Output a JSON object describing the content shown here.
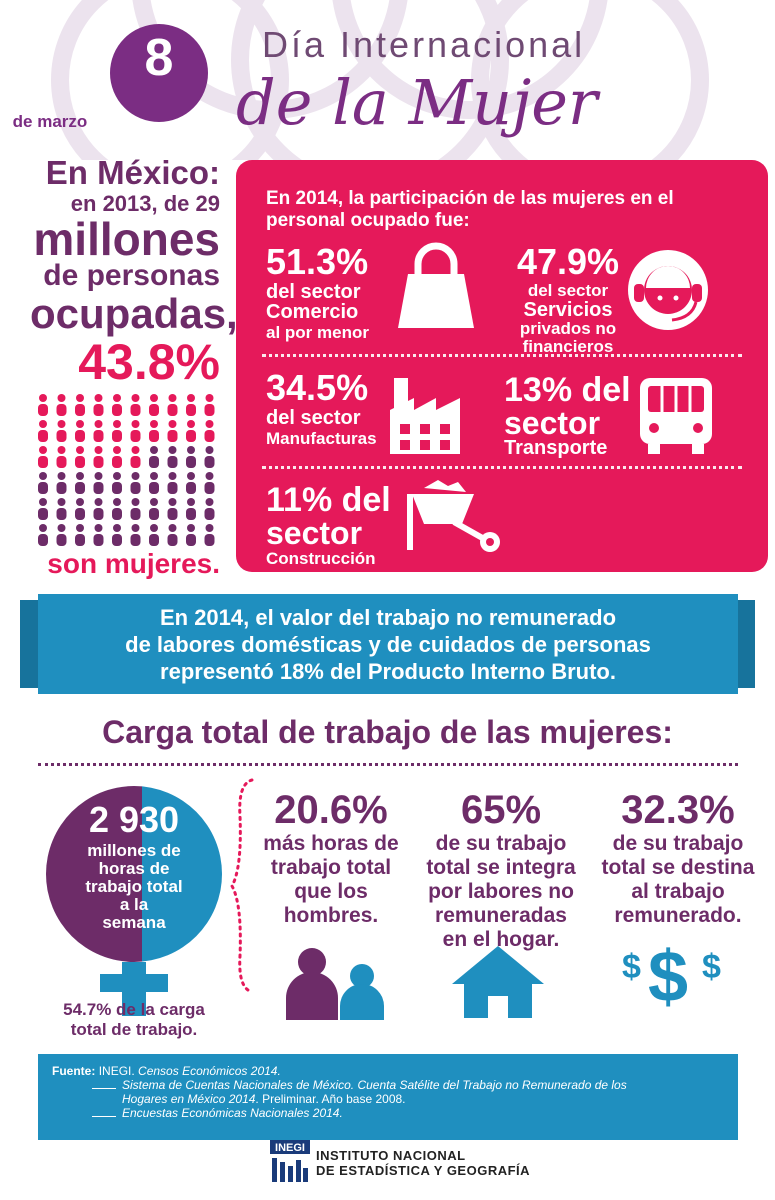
{
  "header": {
    "date_day": "8",
    "date_month": "de marzo",
    "title_line1": "Día Internacional",
    "title_line2": "de la Mujer"
  },
  "left": {
    "line1": "En México:",
    "line2": "en 2013, de 29",
    "line3": "millones",
    "line4": "de personas",
    "line5": "ocupadas,",
    "line6": "43.8%",
    "footer": "son mujeres.",
    "people_share": 0.438
  },
  "sectors": {
    "intro": "En 2014, la participación de las mujeres en el personal ocupado fue:",
    "comercio": {
      "pct": "51.3%",
      "l1": "del sector",
      "l2": "Comercio",
      "l3": "al por menor",
      "icon": "shopping-bag-icon"
    },
    "servicios": {
      "pct": "47.9%",
      "l1": "del sector",
      "l2": "Servicios",
      "l3": "privados no",
      "l4": "financieros",
      "icon": "headset-operator-icon"
    },
    "manufacturas": {
      "pct": "34.5%",
      "l1": "del sector",
      "l2": "Manufacturas",
      "icon": "factory-icon"
    },
    "transporte": {
      "pct": "13% del",
      "l1": "sector",
      "l2": "Transporte",
      "icon": "bus-icon"
    },
    "construccion": {
      "pct": "11% del",
      "l1": "sector",
      "l2": "Construcción",
      "icon": "wheelbarrow-icon"
    }
  },
  "banner": {
    "line1": "En 2014, el valor del trabajo no remunerado",
    "line2": "de labores domésticas y de cuidados de personas",
    "line3": "representó 18% del Producto Interno Bruto."
  },
  "carga": {
    "title": "Carga total de trabajo de las mujeres:",
    "hours_num": "2 930",
    "hours_label_1": "millones de",
    "hours_label_2": "horas de",
    "hours_label_3": "trabajo total",
    "hours_label_4": "a la",
    "hours_label_5": "semana",
    "share_1": "54.7% de la carga",
    "share_2": "total de trabajo.",
    "share_value": 0.547,
    "col1": {
      "pct": "20.6%",
      "l1": "más horas de",
      "l2": "trabajo total",
      "l3": "que los",
      "l4": "hombres.",
      "icon": "people-icon"
    },
    "col2": {
      "pct": "65%",
      "l1": "de su trabajo",
      "l2": "total se integra",
      "l3": "por labores no",
      "l4": "remuneradas",
      "l5": "en el hogar.",
      "icon": "house-icon"
    },
    "col3": {
      "pct": "32.3%",
      "l1": "de su trabajo",
      "l2": "total se destina",
      "l3": "al trabajo",
      "l4": "remunerado.",
      "icon": "dollar-signs-icon"
    }
  },
  "sources": {
    "label": "Fuente:",
    "org": "INEGI.",
    "s1": "Censos Económicos 2014.",
    "s2a": "Sistema de Cuentas Nacionales de México. Cuenta Satélite del Trabajo no Remunerado de los",
    "s2b": "Hogares en México 2014",
    "s2c": ". Preliminar. Año base 2008.",
    "s3": "Encuestas Económicas Nacionales 2014."
  },
  "logo": {
    "mark": "INEGI",
    "name_1": "INSTITUTO NACIONAL",
    "name_2": "DE ESTADÍSTICA Y GEOGRAFÍA"
  },
  "colors": {
    "purple": "#6d2c68",
    "pink": "#e5195a",
    "blue": "#1f8fbf"
  }
}
